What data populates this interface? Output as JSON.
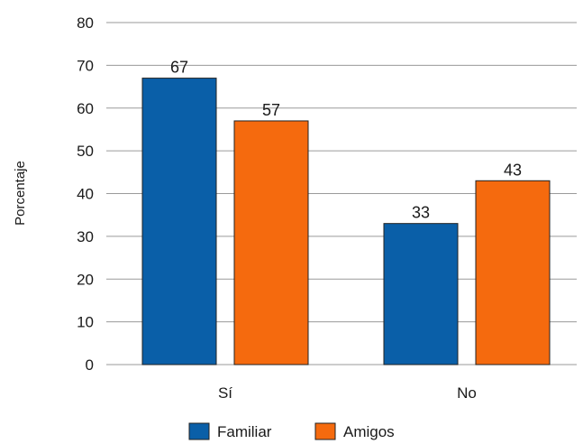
{
  "chart_data": {
    "type": "bar",
    "title": "",
    "xlabel": "",
    "ylabel": "Porcentaje",
    "categories": [
      "Sí",
      "No"
    ],
    "series": [
      {
        "name": "Familiar",
        "values": [
          67,
          33
        ],
        "color": "#0a5fa8"
      },
      {
        "name": "Amigos",
        "values": [
          57,
          43
        ],
        "color": "#f56a0e"
      }
    ],
    "ylim": [
      0,
      80
    ],
    "yticks": [
      0,
      10,
      20,
      30,
      40,
      50,
      60,
      70,
      80
    ],
    "grid": true,
    "legend_position": "bottom"
  }
}
